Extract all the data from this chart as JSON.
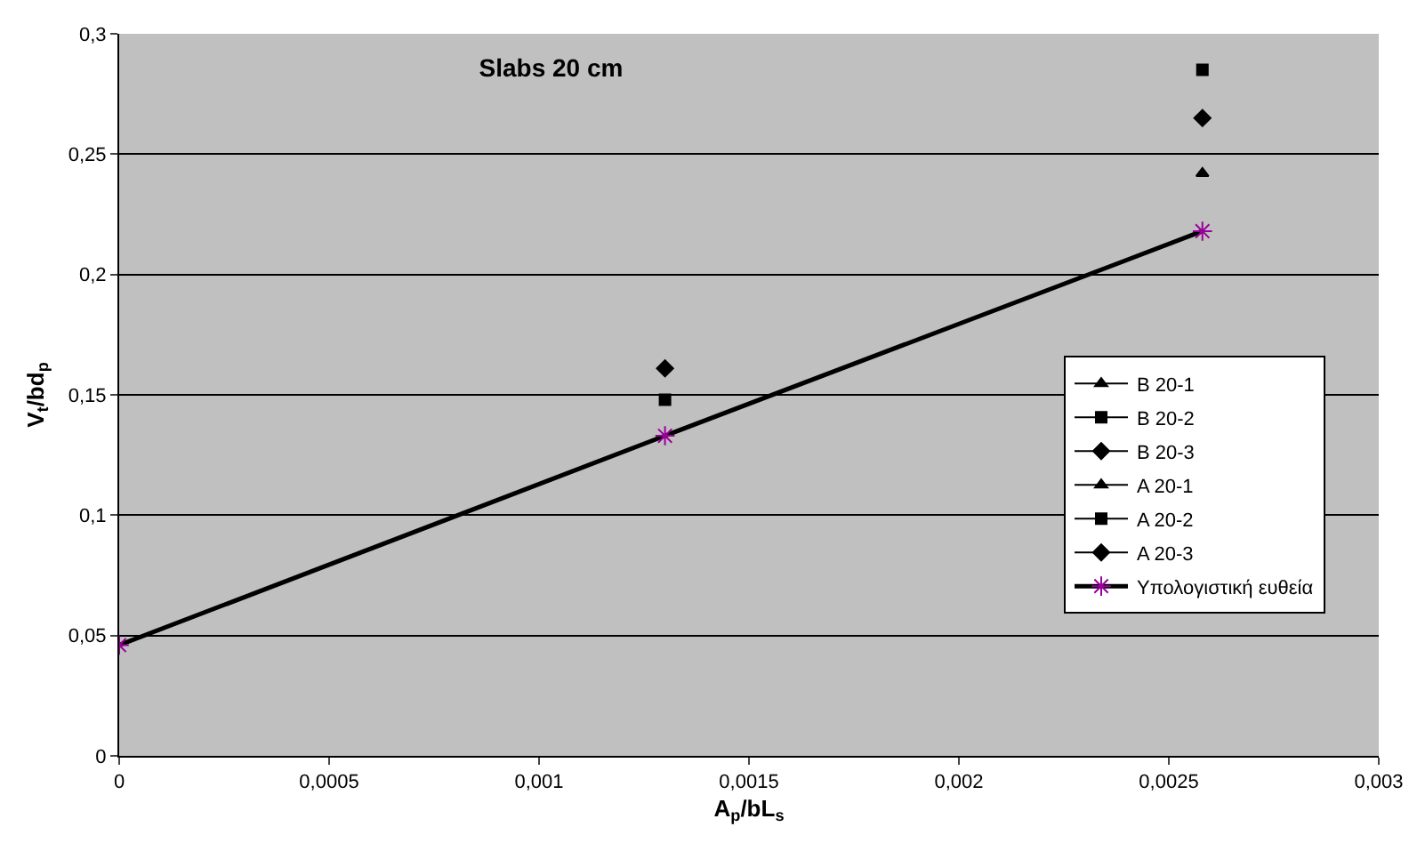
{
  "chart_data": {
    "type": "scatter",
    "title": "Slabs 20 cm",
    "xlabel": "A$_{p}$/bL$_{s}$",
    "ylabel": "V$_{t}$/bd$_{p}$",
    "xlim": [
      0,
      0.003
    ],
    "xticks": [
      0,
      {
        "value": 0.0005,
        "label": "0,0005"
      },
      {
        "value": 0.001,
        "label": "0,001"
      },
      {
        "value": 0.0015,
        "label": "0,0015"
      },
      {
        "value": 0.002,
        "label": "0,002"
      },
      {
        "value": 0.0025,
        "label": "0,0025"
      },
      {
        "value": 0.003,
        "label": "0,003"
      }
    ],
    "ylim": [
      0,
      0.3
    ],
    "yticks": [
      0,
      {
        "value": 0.05,
        "label": "0,05"
      },
      {
        "value": 0.1,
        "label": "0,1"
      },
      {
        "value": 0.15,
        "label": "0,15"
      },
      {
        "value": 0.2,
        "label": "0,2"
      },
      {
        "value": 0.25,
        "label": "0,25"
      },
      {
        "value": 0.3,
        "label": "0,3"
      }
    ],
    "grid": "y",
    "legend": "right",
    "series": [
      {
        "name": "B 20-1",
        "color": "#000000",
        "marker": "triangle",
        "x": [
          0.00258
        ],
        "values": [
          0.242
        ]
      },
      {
        "name": "B 20-2",
        "color": "#000000",
        "marker": "square",
        "x": [
          0.00258
        ],
        "values": [
          0.285
        ]
      },
      {
        "name": "B 20-3",
        "color": "#000000",
        "marker": "diamond",
        "x": [
          0.00258
        ],
        "values": [
          0.265
        ]
      },
      {
        "name": "A 20-1",
        "color": "#000000",
        "marker": "triangle",
        "values": [
          null
        ]
      },
      {
        "name": "A 20-2",
        "color": "#000000",
        "marker": "square",
        "x": [
          0.0013
        ],
        "values": [
          0.148
        ]
      },
      {
        "name": "A 20-3",
        "color": "#000000",
        "marker": "diamond",
        "x": [
          0.0013
        ],
        "values": [
          0.161
        ]
      },
      {
        "name": "Υπολογιστική ευθεία",
        "type": "line",
        "color": "#000000",
        "marker": "cross",
        "line_style": "solid",
        "x": [
          0,
          0.0013,
          0.00258
        ],
        "values": [
          0.046,
          0.133,
          0.218
        ]
      }
    ]
  }
}
